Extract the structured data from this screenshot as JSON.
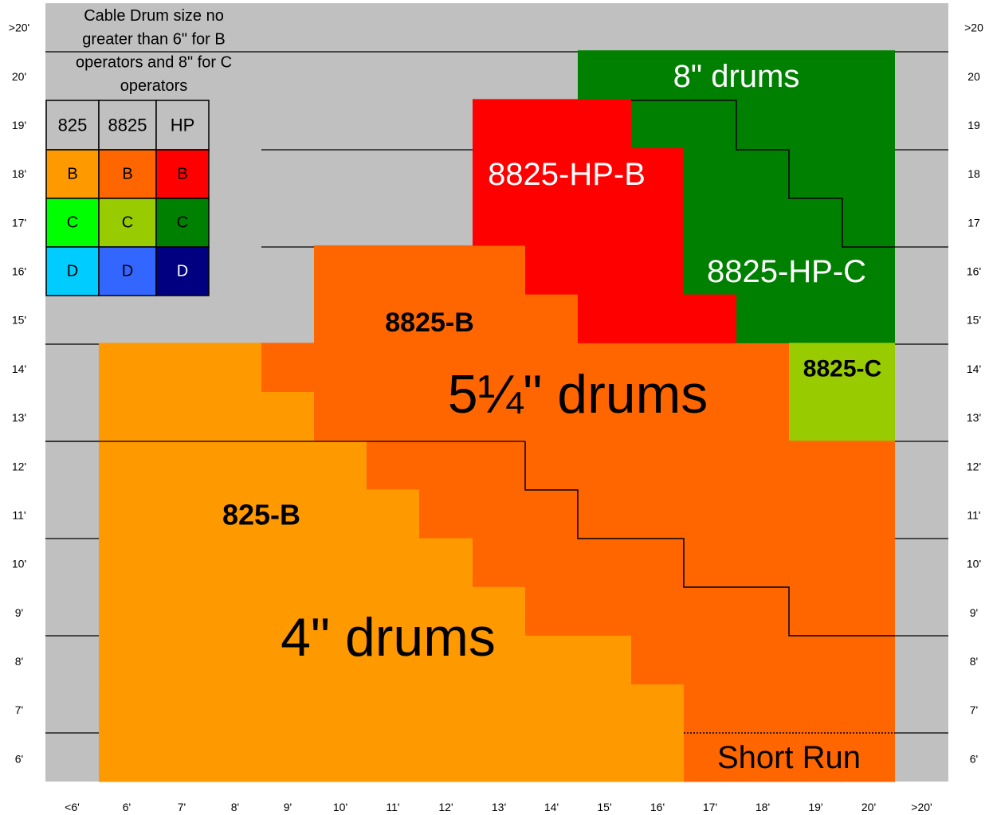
{
  "title_lines": [
    "Cable Drum size no",
    "greater than 6\" for B",
    "operators and 8\" for C",
    "operators"
  ],
  "legend": {
    "headers": [
      "825",
      "8825",
      "HP"
    ],
    "rows": [
      [
        "B",
        "B",
        "B"
      ],
      [
        "C",
        "C",
        "C"
      ],
      [
        "D",
        "D",
        "D"
      ]
    ]
  },
  "region_labels": {
    "drums_8": "8\" drums",
    "hp_b": "8825-HP-B",
    "hp_c": "8825-HP-C",
    "b_8825": "8825-B",
    "drums_5": "5¼\" drums",
    "c_8825": "8825-C",
    "b_825": "825-B",
    "drums_4": "4\" drums",
    "short_run": "Short Run"
  },
  "y_labels_left": [
    ">20'",
    "20'",
    "19'",
    "18'",
    "17'",
    "16'",
    "15'",
    "14'",
    "13'",
    "12'",
    "11'",
    "10'",
    "9'",
    "8'",
    "7'",
    "6'"
  ],
  "y_labels_right": [
    ">20",
    "20",
    "19",
    "18",
    "17",
    "16'",
    "15'",
    "14'",
    "13'",
    "12'",
    "11'",
    "10'",
    "9'",
    "8'",
    "7'",
    "6'"
  ],
  "x_labels": [
    "<6'",
    "6'",
    "7'",
    "8'",
    "9'",
    "10'",
    "11'",
    "12'",
    "13'",
    "14'",
    "15'",
    "16'",
    "17'",
    "18'",
    "19'",
    "20'",
    ">20'"
  ]
}
